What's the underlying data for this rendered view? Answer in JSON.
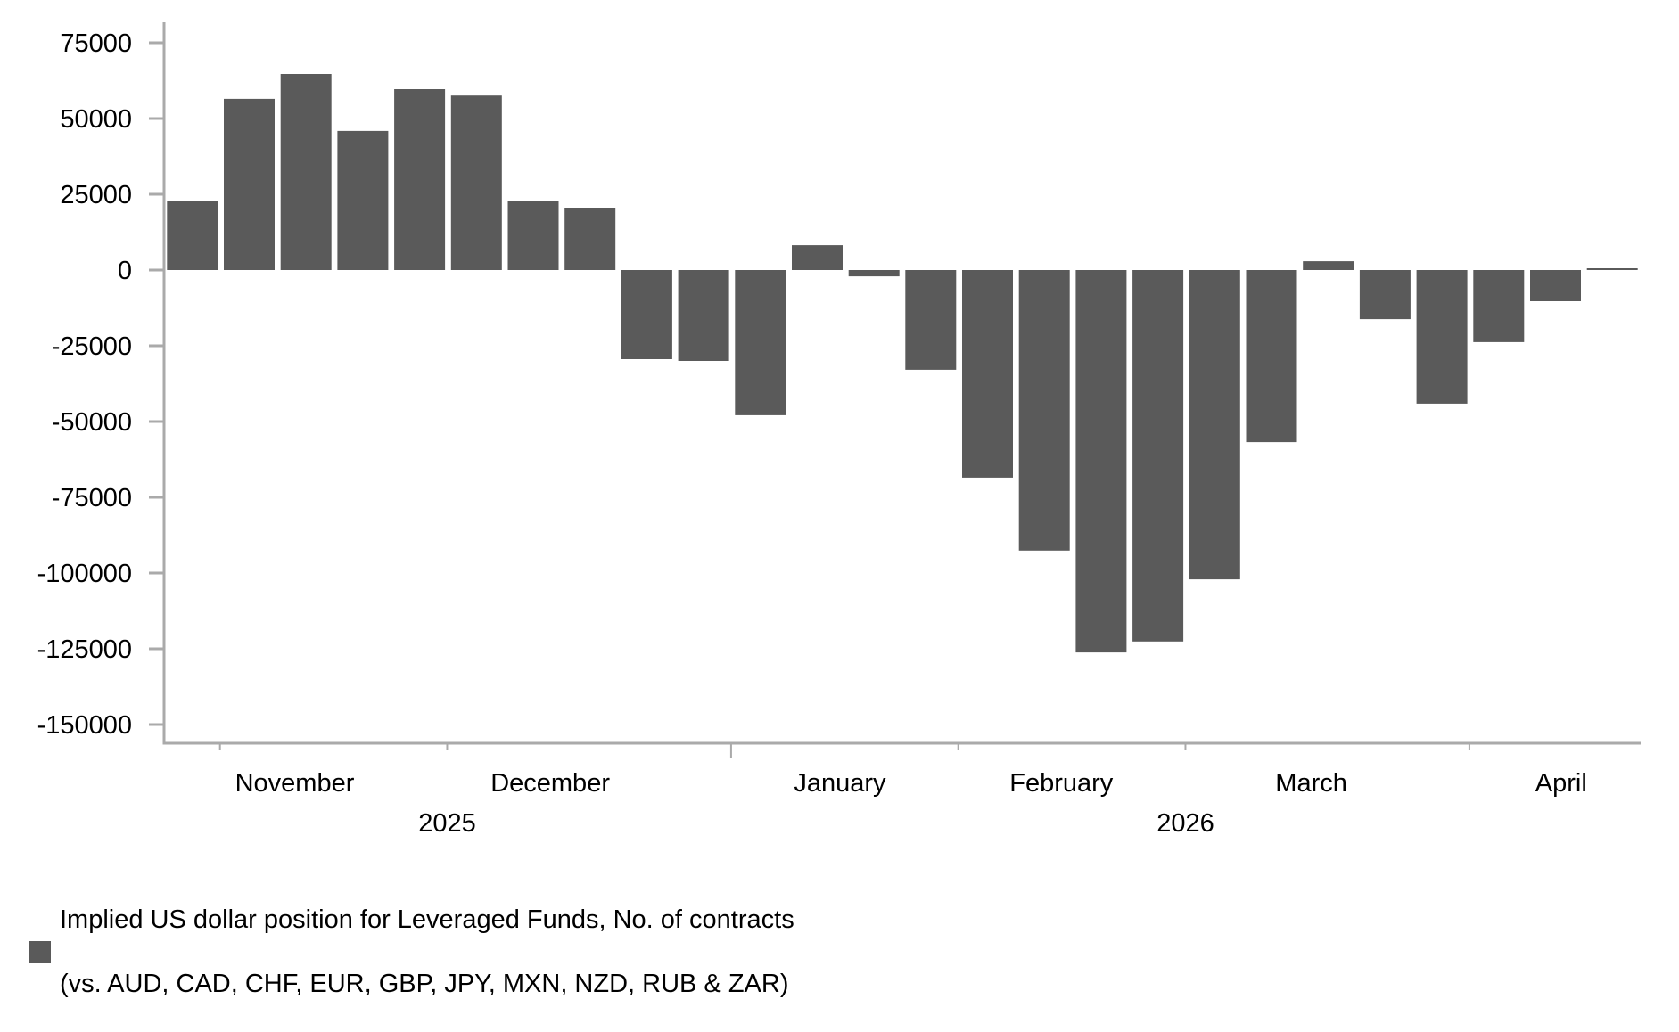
{
  "chart_data": {
    "type": "bar",
    "title": "",
    "xlabel": "",
    "ylabel": "",
    "ylim": [
      -150000,
      75000
    ],
    "yticks": [
      75000,
      50000,
      25000,
      0,
      -25000,
      -50000,
      -75000,
      -100000,
      -125000,
      -150000
    ],
    "grid": false,
    "bar_color": "#5a5a5a",
    "axis_color": "#aaaaaa",
    "month_labels": [
      {
        "label": "November",
        "after_bar": 2.3
      },
      {
        "label": "December",
        "after_bar": 6.8
      },
      {
        "label": "January",
        "after_bar": 11.9
      },
      {
        "label": "February",
        "after_bar": 15.8
      },
      {
        "label": "March",
        "after_bar": 20.2
      },
      {
        "label": "April",
        "after_bar": 24.6
      }
    ],
    "month_ticks": [
      1,
      5,
      10,
      14,
      18,
      23
    ],
    "year_divider_tick": 10,
    "year_labels": [
      {
        "label": "2025",
        "at_bar": 5
      },
      {
        "label": "2026",
        "at_bar": 18
      }
    ],
    "series": [
      {
        "name": "Implied US dollar position for Leveraged Funds, No. of contracts (vs. AUD, CAD, CHF, EUR, GBP, JPY, MXN, NZD, RUB & ZAR)",
        "values": [
          22900,
          56500,
          64700,
          45900,
          59700,
          57600,
          22900,
          20600,
          -29400,
          -30000,
          -47900,
          8200,
          -2100,
          -32900,
          -68500,
          -92600,
          -126200,
          -122600,
          -102100,
          -56800,
          2900,
          -16200,
          -44100,
          -23800,
          -10300,
          600
        ]
      }
    ],
    "legend": {
      "position": "bottom-left",
      "label_line1": "Implied US dollar position for Leveraged Funds, No. of contracts",
      "label_line2": "(vs. AUD, CAD, CHF, EUR, GBP, JPY, MXN, NZD, RUB & ZAR)"
    }
  }
}
